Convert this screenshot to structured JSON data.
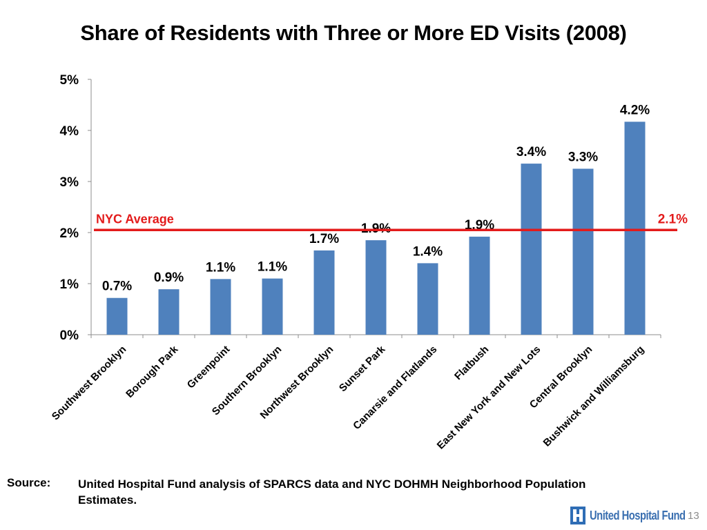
{
  "slide": {
    "source_label": "Source:",
    "source_text": "United Hospital Fund analysis of SPARCS data and NYC DOHMH Neighborhood Population Estimates.",
    "logo_text": "United Hospital Fund",
    "page_number": "13"
  },
  "colors": {
    "bar": "#4f81bd",
    "average_line": "#e31b1b",
    "axis": "#8c8c8c"
  },
  "chart_data": {
    "type": "bar",
    "title": "Share of Residents with Three or More ED Visits (2008)",
    "xlabel": "",
    "ylabel": "",
    "ylim": [
      0,
      5
    ],
    "yticks": [
      "0%",
      "1%",
      "2%",
      "3%",
      "4%",
      "5%"
    ],
    "categories": [
      "Southwest Brooklyn",
      "Borough Park",
      "Greenpoint",
      "Southern Brooklyn",
      "Northwest Brooklyn",
      "Sunset Park",
      "Canarsie and Flatlands",
      "Flatbush",
      "East New York and New Lots",
      "Central Brooklyn",
      "Bushwick and Williamsburg"
    ],
    "values": [
      0.72,
      0.89,
      1.09,
      1.1,
      1.65,
      1.85,
      1.4,
      1.92,
      3.35,
      3.25,
      4.17
    ],
    "data_labels": [
      "0.7%",
      "0.9%",
      "1.1%",
      "1.1%",
      "1.7%",
      "1.9%",
      "1.4%",
      "1.9%",
      "3.4%",
      "3.3%",
      "4.2%"
    ],
    "reference_line": {
      "label": "NYC Average",
      "value": 2.05,
      "value_label": "2.1%"
    },
    "grid": false,
    "legend": "none"
  }
}
